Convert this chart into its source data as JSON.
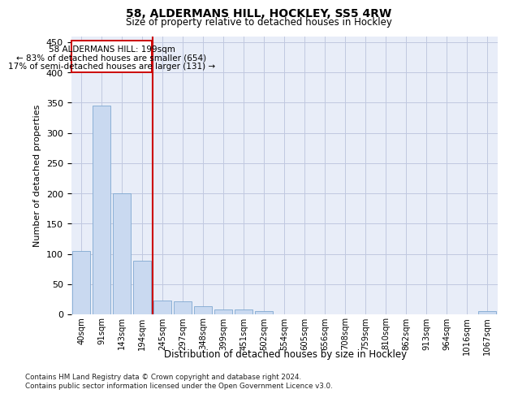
{
  "title": "58, ALDERMANS HILL, HOCKLEY, SS5 4RW",
  "subtitle": "Size of property relative to detached houses in Hockley",
  "xlabel": "Distribution of detached houses by size in Hockley",
  "ylabel": "Number of detached properties",
  "categories": [
    "40sqm",
    "91sqm",
    "143sqm",
    "194sqm",
    "245sqm",
    "297sqm",
    "348sqm",
    "399sqm",
    "451sqm",
    "502sqm",
    "554sqm",
    "605sqm",
    "656sqm",
    "708sqm",
    "759sqm",
    "810sqm",
    "862sqm",
    "913sqm",
    "964sqm",
    "1016sqm",
    "1067sqm"
  ],
  "values": [
    105,
    345,
    200,
    88,
    23,
    22,
    13,
    8,
    8,
    5,
    0,
    0,
    0,
    0,
    0,
    0,
    0,
    0,
    0,
    0,
    5
  ],
  "bar_color": "#c9d9f0",
  "bar_edge_color": "#7fa8d1",
  "grid_color": "#c0c8e0",
  "background_color": "#e8edf8",
  "annotation_line1": "58 ALDERMANS HILL: 199sqm",
  "annotation_line2": "← 83% of detached houses are smaller (654)",
  "annotation_line3": "17% of semi-detached houses are larger (131) →",
  "annotation_box_color": "#cc0000",
  "property_line_x": 3.5,
  "ylim": [
    0,
    460
  ],
  "yticks": [
    0,
    50,
    100,
    150,
    200,
    250,
    300,
    350,
    400,
    450
  ],
  "footer_line1": "Contains HM Land Registry data © Crown copyright and database right 2024.",
  "footer_line2": "Contains public sector information licensed under the Open Government Licence v3.0."
}
